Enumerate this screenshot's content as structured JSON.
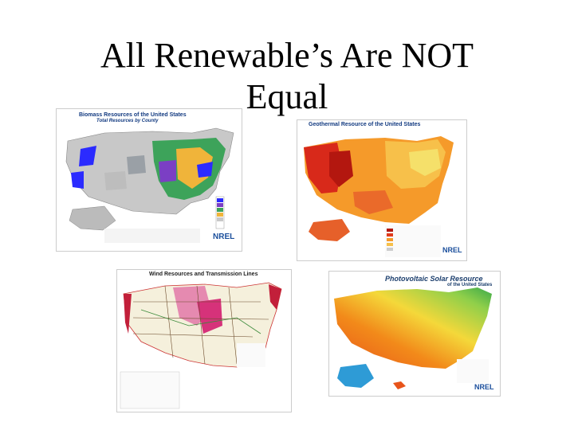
{
  "slide": {
    "title": "All Renewable’s Are NOT Equal"
  },
  "maps": {
    "biomass": {
      "title": "Biomass Resources of the United States",
      "subtitle": "Total Resources by County",
      "logo": "NREL"
    },
    "geothermal": {
      "title": "Geothermal Resource of the United States",
      "logo": "NREL"
    },
    "wind": {
      "title": "Wind Resources and Transmission Lines"
    },
    "solar": {
      "title": "Photovoltaic Solar Resource",
      "subtitle": "of the United States",
      "logo": "NREL"
    }
  },
  "colors": {
    "biomass_high": "#1a1aff",
    "biomass_mid": "#2e8b57",
    "geothermal_hot": "#e03a1c",
    "geothermal_warm": "#f59a2a",
    "wind_high": "#d6327a",
    "solar_high": "#e8541b",
    "solar_low": "#4caf50"
  }
}
